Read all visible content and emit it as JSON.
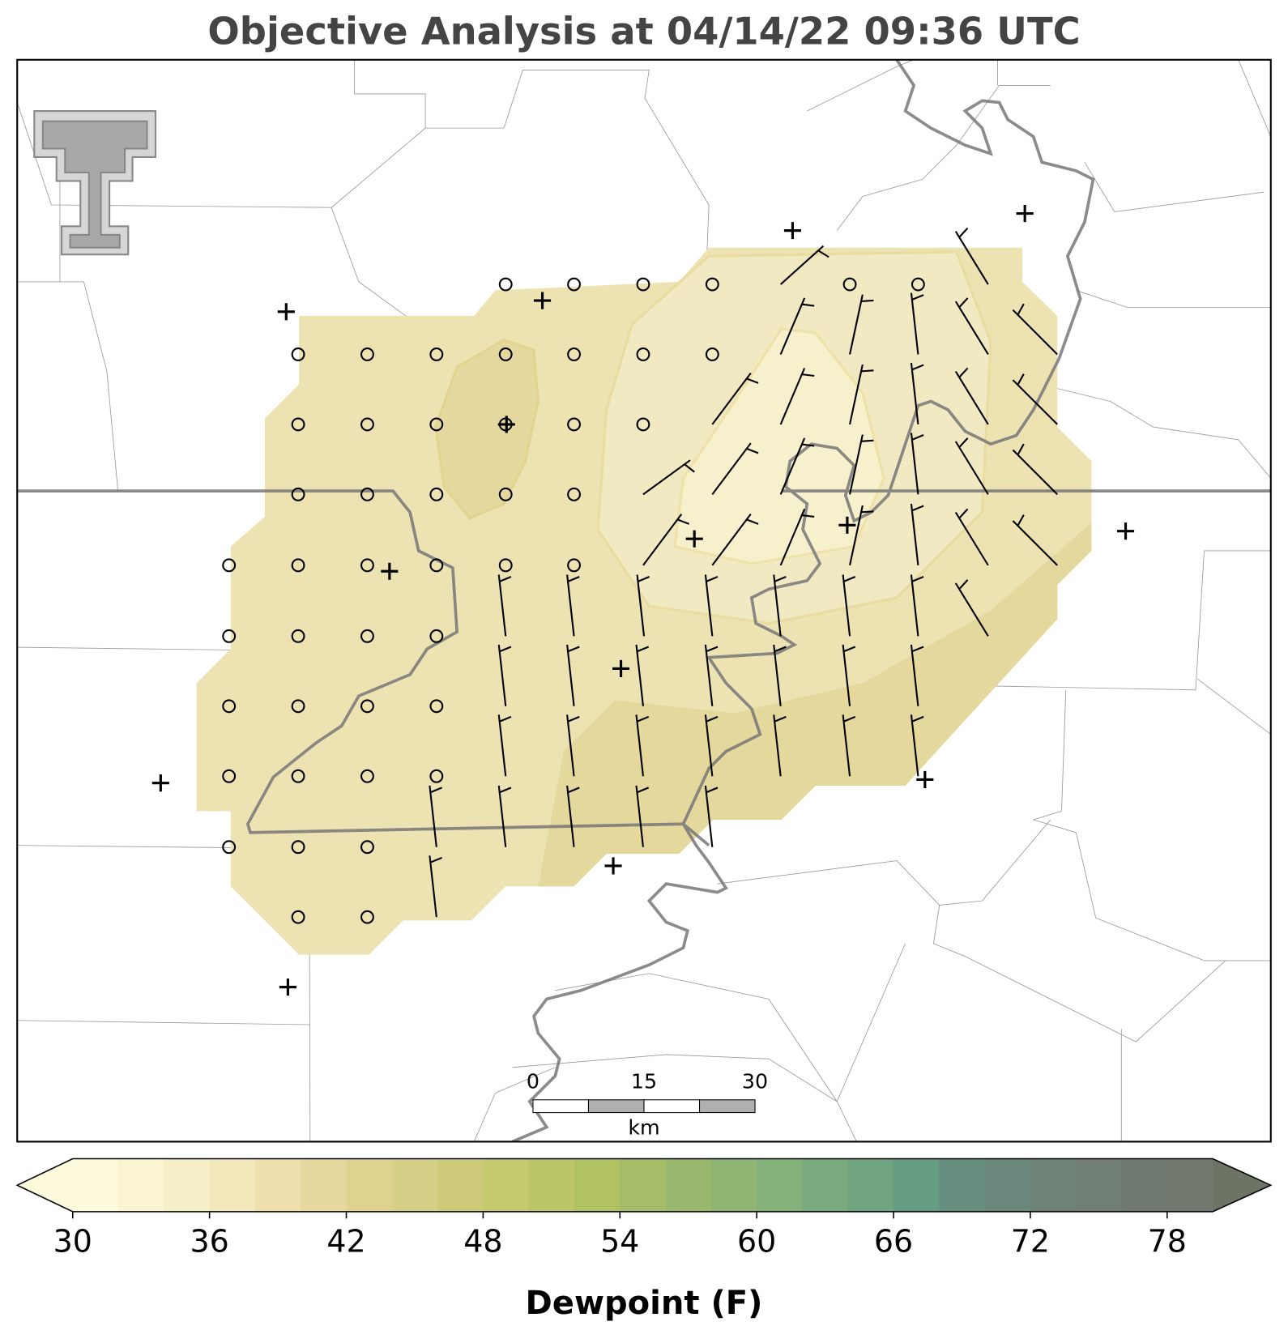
{
  "title": "Objective Analysis at 04/14/22 09:36 UTC",
  "scale_bar": {
    "ticks": [
      0,
      15,
      30
    ],
    "unit": "km"
  },
  "colorbar": {
    "label": "Dewpoint (F)",
    "range": [
      30,
      80
    ],
    "ticks": [
      30,
      36,
      42,
      48,
      54,
      60,
      66,
      72,
      78
    ],
    "colors": [
      "#fdf9dc",
      "#faf4d2",
      "#f6eec6",
      "#f2e7ba",
      "#ede0ad",
      "#e6d9a0",
      "#ddd28f",
      "#d6cf87",
      "#cdcb7a",
      "#c5c96f",
      "#bcc567",
      "#b1c263",
      "#a5bd68",
      "#9ab86d",
      "#8fb474",
      "#84b07a",
      "#7aaa7d",
      "#70a380",
      "#669d82",
      "#668f80",
      "#6a877b",
      "#6e8278",
      "#707e74",
      "#717a72",
      "#747970"
    ],
    "under_color": "#fefbdd",
    "over_color": "#6d7466"
  }
}
